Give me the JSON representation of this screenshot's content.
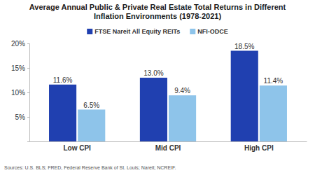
{
  "chart_data": {
    "type": "bar",
    "title": "Average Annual Public & Private Real Estate Total Returns in Different Inflation Environments (1978-2021)",
    "source": "Sources: U.S. BLS; FRED, Federal Reserve Bank of St. Louis; Nareit; NCREIF.",
    "categories": [
      "Low CPI",
      "Mid CPI",
      "High CPI"
    ],
    "series": [
      {
        "name": "FTSE Nareit All Equity REITs",
        "color": "#2040b0",
        "values": [
          11.6,
          13.0,
          18.5
        ],
        "value_labels": [
          "11.6%",
          "13.0%",
          "18.5%"
        ]
      },
      {
        "name": "NFI-ODCE",
        "color": "#8ec4ea",
        "values": [
          6.5,
          9.4,
          11.4
        ],
        "value_labels": [
          "6.5%",
          "9.4%",
          "11.4%"
        ]
      }
    ],
    "ylim": [
      0,
      20
    ],
    "yticks": [
      {
        "value": 5,
        "label": "5%"
      },
      {
        "value": 10,
        "label": "10%"
      },
      {
        "value": 15,
        "label": "15%"
      },
      {
        "value": 20,
        "label": "20%"
      }
    ],
    "grid": false,
    "legend": "top",
    "data_labels": true
  }
}
